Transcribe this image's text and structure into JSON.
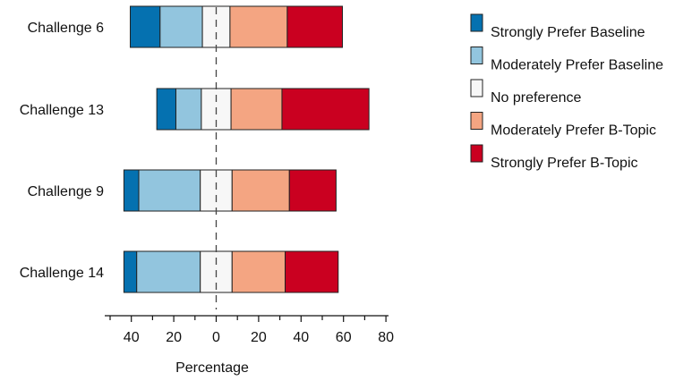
{
  "chart_data": {
    "type": "bar",
    "subtype": "diverging-stacked-horizontal",
    "categories": [
      "Challenge 6",
      "Challenge 13",
      "Challenge 9",
      "Challenge 14"
    ],
    "series": [
      {
        "name": "Strongly Prefer Baseline",
        "color": "#0571b0",
        "side": "left",
        "values": [
          14,
          9,
          7,
          6
        ]
      },
      {
        "name": "Moderately Prefer Baseline",
        "color": "#92c5de",
        "side": "left",
        "values": [
          20,
          12,
          29,
          30
        ]
      },
      {
        "name": "No preference",
        "color": "#f7f7f7",
        "side": "center",
        "values": [
          13,
          14,
          15,
          15
        ]
      },
      {
        "name": "Moderately Prefer B-Topic",
        "color": "#f4a582",
        "side": "right",
        "values": [
          27,
          24,
          27,
          25
        ]
      },
      {
        "name": "Strongly Prefer B-Topic",
        "color": "#ca0020",
        "side": "right",
        "values": [
          26,
          41,
          22,
          25
        ]
      }
    ],
    "xlabel": "Percentage",
    "ylabel": "",
    "title": "",
    "xlim": [
      -52,
      82
    ],
    "xticks": [
      -40,
      -20,
      0,
      20,
      40,
      60,
      80
    ],
    "xtick_labels": [
      "40",
      "20",
      "0",
      "20",
      "40",
      "60",
      "80"
    ],
    "zero_line": "dashed",
    "legend_position": "right",
    "grid": false
  }
}
